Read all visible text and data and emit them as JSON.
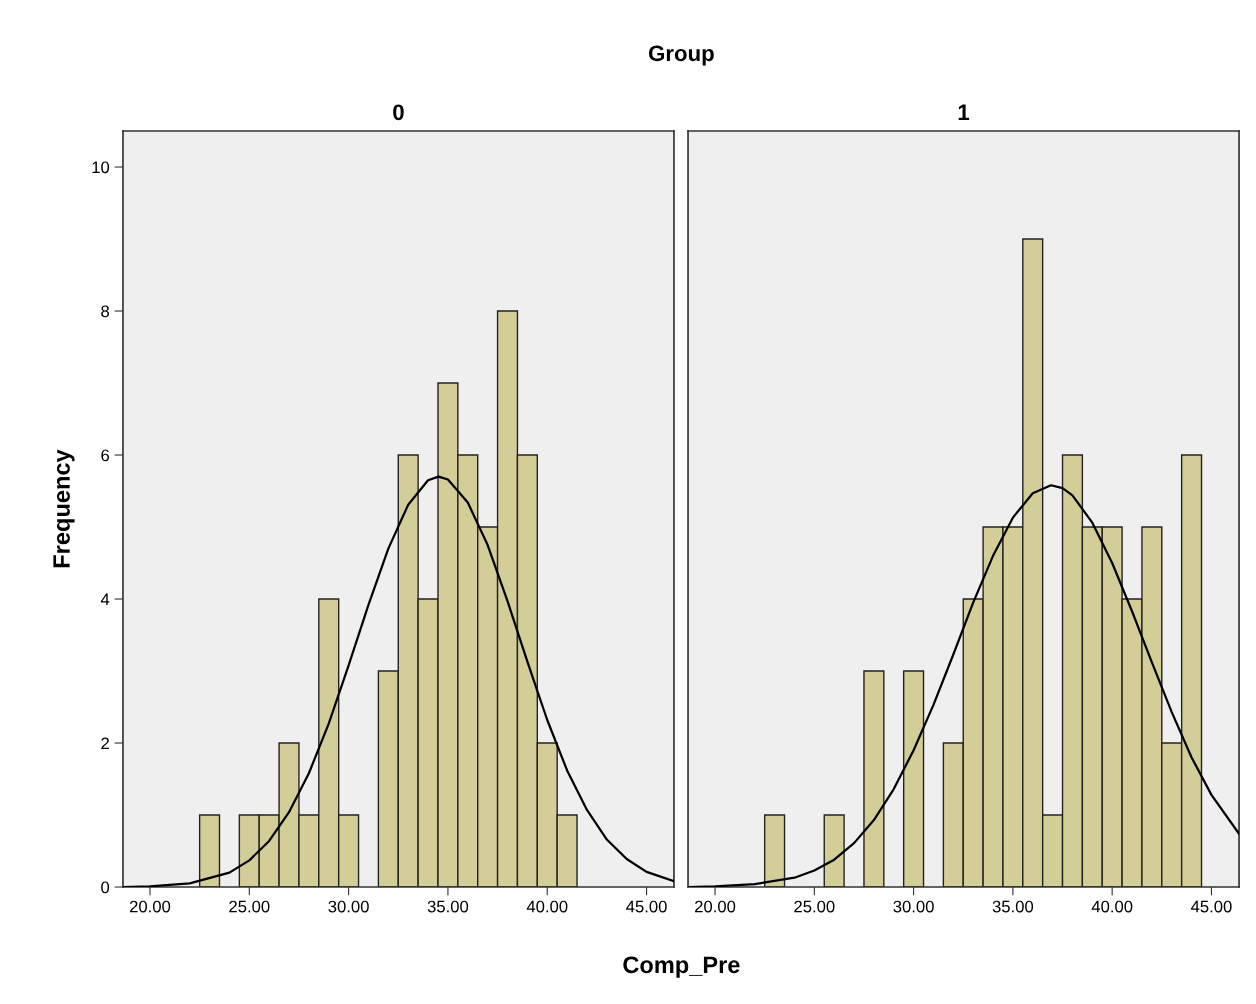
{
  "chart_data": [
    {
      "type": "histogram",
      "title": "0",
      "xlabel": "Comp_Pre",
      "ylabel": "Frequency",
      "annotations": [
        "Group"
      ],
      "xlim": [
        18.64,
        46.38
      ],
      "ylim": [
        0,
        10.5
      ],
      "xticks": [
        {
          "value": 20,
          "label": "20.00"
        },
        {
          "value": 25,
          "label": "25.00"
        },
        {
          "value": 30,
          "label": "30.00"
        },
        {
          "value": 35,
          "label": "35.00"
        },
        {
          "value": 40,
          "label": "40.00"
        },
        {
          "value": 45,
          "label": "45.00"
        }
      ],
      "yticks": [
        0,
        2,
        4,
        6,
        8,
        10
      ],
      "grid": false,
      "series": [
        {
          "color": "#d3ce97",
          "bins": [
            22.5,
            23.5,
            24.5,
            25.5,
            26.5,
            27.5,
            28.5,
            29.5,
            30.5,
            31.5,
            32.5,
            33.5,
            34.5,
            35.5,
            36.5,
            37.5,
            38.5,
            39.5,
            40.5,
            41.5
          ],
          "values": [
            1,
            0,
            1,
            1,
            2,
            1,
            4,
            1,
            0,
            3,
            6,
            4,
            7,
            6,
            5,
            8,
            6,
            2,
            1
          ]
        },
        {
          "type": "line",
          "color": "#000000",
          "x": [
            18.64,
            20,
            22,
            24,
            25,
            26,
            27,
            28,
            29,
            30,
            31,
            32,
            33,
            34,
            34.53,
            35,
            36,
            37,
            38,
            39,
            40,
            41,
            42,
            43,
            44,
            45,
            46.38
          ],
          "values": [
            0.0,
            0.01,
            0.05,
            0.2,
            0.37,
            0.64,
            1.04,
            1.58,
            2.27,
            3.08,
            3.92,
            4.7,
            5.31,
            5.65,
            5.7,
            5.66,
            5.34,
            4.75,
            3.97,
            3.13,
            2.32,
            1.62,
            1.07,
            0.66,
            0.39,
            0.21,
            0.08
          ]
        }
      ]
    },
    {
      "type": "histogram",
      "title": "1",
      "tick_labels": "x",
      "xlim": [
        18.64,
        46.39
      ],
      "ylim": [
        0,
        10.5
      ],
      "xticks": [
        {
          "value": 20,
          "label": "20.00"
        },
        {
          "value": 25,
          "label": "25.00"
        },
        {
          "value": 30,
          "label": "30.00"
        },
        {
          "value": 35,
          "label": "35.00"
        },
        {
          "value": 40,
          "label": "40.00"
        },
        {
          "value": 45,
          "label": "45.00"
        }
      ],
      "yticks": [
        0,
        2,
        4,
        6,
        8,
        10
      ],
      "grid": false,
      "series": [
        {
          "color": "#d3ce97",
          "bins": [
            22.5,
            23.5,
            24.5,
            25.5,
            26.5,
            27.5,
            28.5,
            29.5,
            30.5,
            31.5,
            32.5,
            33.5,
            34.5,
            35.5,
            36.5,
            37.5,
            38.5,
            39.5,
            40.5,
            41.5,
            42.5,
            43.5,
            44.5
          ],
          "values": [
            1,
            0,
            0,
            1,
            0,
            3,
            0,
            3,
            0,
            2,
            4,
            5,
            5,
            9,
            1,
            6,
            5,
            5,
            4,
            5,
            2,
            6
          ]
        },
        {
          "type": "line",
          "color": "#000000",
          "x": [
            18.64,
            20,
            22,
            24,
            25,
            26,
            27,
            28,
            29,
            30,
            31,
            32,
            33,
            34,
            35,
            36,
            36.92,
            37.5,
            38,
            39,
            40,
            41,
            42,
            43,
            44,
            45,
            46.39
          ],
          "values": [
            0.0,
            0.01,
            0.04,
            0.13,
            0.23,
            0.38,
            0.61,
            0.93,
            1.36,
            1.9,
            2.53,
            3.23,
            3.95,
            4.6,
            5.13,
            5.47,
            5.58,
            5.54,
            5.44,
            5.06,
            4.5,
            3.83,
            3.12,
            2.43,
            1.8,
            1.28,
            0.74
          ]
        }
      ]
    }
  ]
}
